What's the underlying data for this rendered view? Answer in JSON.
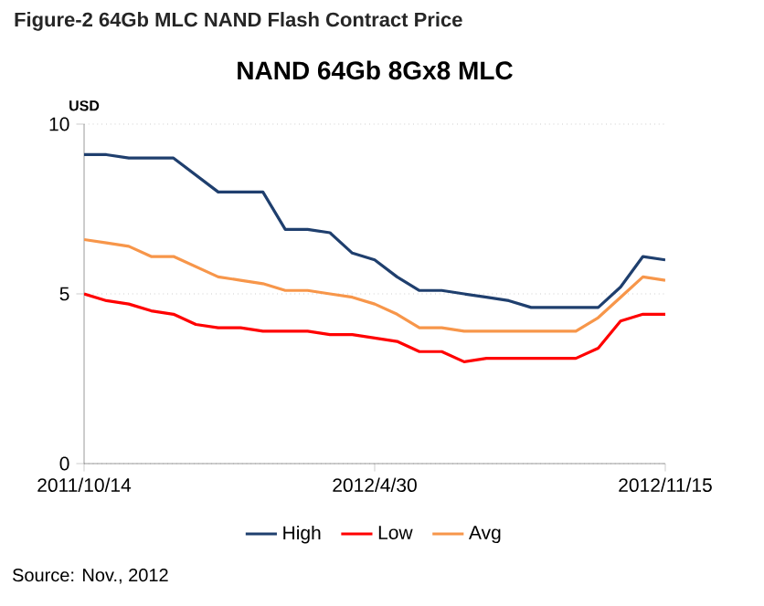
{
  "chart_data": {
    "type": "line",
    "title": "NAND 64Gb 8Gx8 MLC",
    "subtitle": "Figure-2 64Gb MLC NAND Flash Contract Price",
    "ylabel": "USD",
    "annotations": [
      "Source: Nov., 2012"
    ],
    "categories": [
      "2011/10/14",
      null,
      null,
      null,
      null,
      null,
      null,
      null,
      null,
      null,
      null,
      null,
      null,
      "2012/4/30",
      null,
      null,
      null,
      null,
      null,
      null,
      null,
      null,
      null,
      null,
      null,
      null,
      "2012/11/15"
    ],
    "series": [
      {
        "name": "High",
        "color": "#1f3f6e",
        "values": [
          9.1,
          9.1,
          9.0,
          9.0,
          9.0,
          8.5,
          8.0,
          8.0,
          8.0,
          6.9,
          6.9,
          6.8,
          6.2,
          6.0,
          5.5,
          5.1,
          5.1,
          5.0,
          4.9,
          4.8,
          4.6,
          4.6,
          4.6,
          4.6,
          5.2,
          6.1,
          6.0
        ]
      },
      {
        "name": "Low",
        "color": "#ff0000",
        "values": [
          5.0,
          4.8,
          4.7,
          4.5,
          4.4,
          4.1,
          4.0,
          4.0,
          3.9,
          3.9,
          3.9,
          3.8,
          3.8,
          3.7,
          3.6,
          3.3,
          3.3,
          3.0,
          3.1,
          3.1,
          3.1,
          3.1,
          3.1,
          3.4,
          4.2,
          4.4,
          4.4
        ]
      },
      {
        "name": "Avg",
        "color": "#f7964a",
        "values": [
          6.6,
          6.5,
          6.4,
          6.1,
          6.1,
          5.8,
          5.5,
          5.4,
          5.3,
          5.1,
          5.1,
          5.0,
          4.9,
          4.7,
          4.4,
          4.0,
          4.0,
          3.9,
          3.9,
          3.9,
          3.9,
          3.9,
          3.9,
          4.3,
          4.9,
          5.5,
          5.4
        ]
      }
    ],
    "ylim": [
      0,
      10
    ],
    "yticks": [
      0,
      5,
      10
    ],
    "grid": "y",
    "legend": "bottom",
    "marker": "none",
    "line_style": "solid"
  }
}
